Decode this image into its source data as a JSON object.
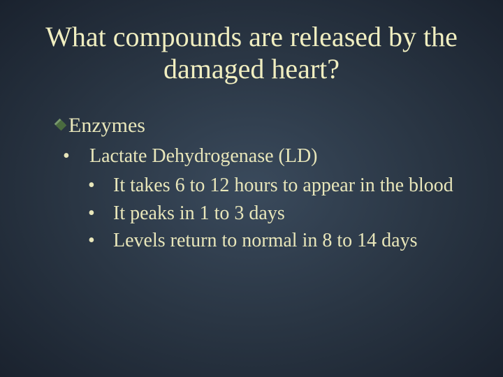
{
  "colors": {
    "title_color": "#f0eec0",
    "body_color": "#e8e6ba",
    "bullet_color": "#e8e6ba"
  },
  "typography": {
    "title_fontsize": 40,
    "level1_fontsize": 30,
    "level2_fontsize": 28,
    "level3_fontsize": 28,
    "font_family": "Times New Roman"
  },
  "title": "What compounds are released by the damaged heart?",
  "bullets": {
    "level1": {
      "text": "Enzymes"
    },
    "level2": {
      "text": "Lactate Dehydrogenase (LD)",
      "marker": "•"
    },
    "level3": [
      {
        "text": "It takes 6 to 12 hours to appear in the blood",
        "marker": "•"
      },
      {
        "text": "It peaks in 1 to 3 days",
        "marker": "•"
      },
      {
        "text": "Levels return to normal in 8 to 14 days",
        "marker": "•"
      }
    ]
  }
}
